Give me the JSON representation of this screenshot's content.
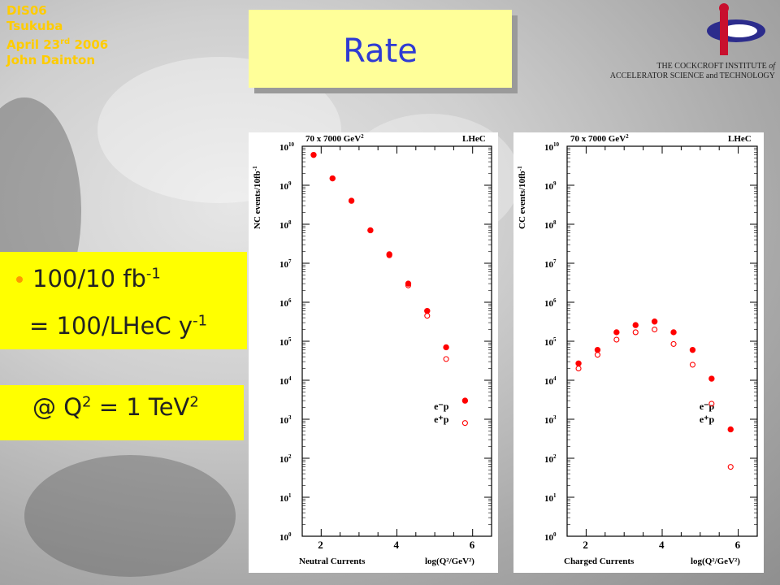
{
  "conference": {
    "line1": "DIS06",
    "line2": "Tsukuba",
    "date_prefix": "April 23",
    "date_suffix": "rd",
    "date_year": " 2006",
    "author": "John Dainton"
  },
  "title": "Rate",
  "institute": {
    "line1_main": "THE COCKCROFT INSTITUTE",
    "line1_of": "of",
    "line2": "ACCELERATOR SCIENCE and TECHNOLOGY"
  },
  "info_box": {
    "line1_value": "100/10 fb",
    "line1_exp": "-1",
    "line2_value": "= 100/LHeC y",
    "line2_exp": "-1"
  },
  "q2_box": {
    "prefix": "@ Q",
    "q_exp": "2",
    "middle": " = 1 TeV",
    "tev_exp": "2"
  },
  "colors": {
    "accent": "#ff0000",
    "title": "#2f3bd3",
    "box": "#ffff00",
    "title_box": "#ffff99"
  },
  "chart_data": [
    {
      "type": "scatter",
      "header_left": "70 x 7000 GeV",
      "header_left_exp": "2",
      "header_right": "LHeC",
      "ylabel": "NC events/10fb",
      "ylabel_exp": "-1",
      "xlabel_left": "Neutral Currents",
      "xlabel_right": "log(Q²/GeV²)",
      "xlim": [
        1.5,
        6.5
      ],
      "xticks": [
        2,
        4,
        6
      ],
      "ylog": true,
      "ylim_exp": [
        0,
        10
      ],
      "series": [
        {
          "name": "e⁻p",
          "marker": "filled",
          "x": [
            1.8,
            2.3,
            2.8,
            3.3,
            3.8,
            4.3,
            4.8,
            5.3,
            5.8
          ],
          "y": [
            6000000000,
            1500000000,
            400000000,
            70000000,
            17000000,
            3000000,
            600000,
            70000,
            3000
          ]
        },
        {
          "name": "e⁺p",
          "marker": "open",
          "x": [
            1.8,
            2.3,
            2.8,
            3.3,
            3.8,
            4.3,
            4.8,
            5.3,
            5.8
          ],
          "y": [
            6000000000,
            1500000000,
            400000000,
            70000000,
            16000000,
            2700000,
            450000,
            35000,
            800
          ]
        }
      ],
      "legend_labels": [
        "e⁻p",
        "e⁺p"
      ]
    },
    {
      "type": "scatter",
      "header_left": "70 x 7000 GeV",
      "header_left_exp": "2",
      "header_right": "LHeC",
      "ylabel": "CC events/10fb",
      "ylabel_exp": "-1",
      "xlabel_left": "Charged Currents",
      "xlabel_right": "log(Q²/GeV²)",
      "xlim": [
        1.5,
        6.5
      ],
      "xticks": [
        2,
        4,
        6
      ],
      "ylog": true,
      "ylim_exp": [
        0,
        10
      ],
      "series": [
        {
          "name": "e⁻p",
          "marker": "filled",
          "x": [
            1.8,
            2.3,
            2.8,
            3.3,
            3.8,
            4.3,
            4.8,
            5.3,
            5.8
          ],
          "y": [
            27000,
            60000,
            170000,
            260000,
            320000,
            170000,
            60000,
            11000,
            550
          ]
        },
        {
          "name": "e⁺p",
          "marker": "open",
          "x": [
            1.8,
            2.3,
            2.8,
            3.3,
            3.8,
            4.3,
            4.8,
            5.3,
            5.8
          ],
          "y": [
            20000,
            45000,
            110000,
            170000,
            200000,
            85000,
            25000,
            2500,
            60
          ]
        }
      ],
      "legend_labels": [
        "e⁻p",
        "e⁺p"
      ]
    }
  ]
}
